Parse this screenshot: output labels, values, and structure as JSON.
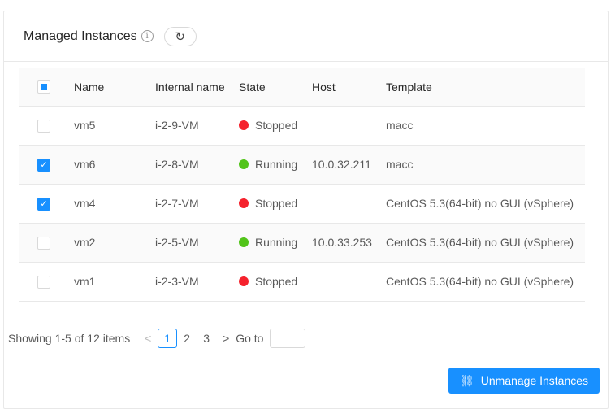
{
  "header": {
    "title": "Managed Instances",
    "info_icon": "info-circle-icon",
    "refresh_icon": "reload-icon"
  },
  "table": {
    "columns": [
      "Name",
      "Internal name",
      "State",
      "Host",
      "Template"
    ],
    "rows": [
      {
        "selected": false,
        "name": "vm5",
        "internal": "i-2-9-VM",
        "state": "Stopped",
        "host": "",
        "template": "macc"
      },
      {
        "selected": true,
        "name": "vm6",
        "internal": "i-2-8-VM",
        "state": "Running",
        "host": "10.0.32.211",
        "template": "macc"
      },
      {
        "selected": true,
        "name": "vm4",
        "internal": "i-2-7-VM",
        "state": "Stopped",
        "host": "",
        "template": "CentOS 5.3(64-bit) no GUI (vSphere)"
      },
      {
        "selected": false,
        "name": "vm2",
        "internal": "i-2-5-VM",
        "state": "Running",
        "host": "10.0.33.253",
        "template": "CentOS 5.3(64-bit) no GUI (vSphere)"
      },
      {
        "selected": false,
        "name": "vm1",
        "internal": "i-2-3-VM",
        "state": "Stopped",
        "host": "",
        "template": "CentOS 5.3(64-bit) no GUI (vSphere)"
      }
    ]
  },
  "colors": {
    "Stopped": "#f5222d",
    "Running": "#52c41a",
    "accent": "#1890ff"
  },
  "pagination": {
    "summary": "Showing 1-5 of 12 items",
    "pages": [
      "1",
      "2",
      "3"
    ],
    "current": "1",
    "prev": "<",
    "next": ">",
    "goto_label": "Go to",
    "goto_value": ""
  },
  "actions": {
    "unmanage_label": "Unmanage Instances",
    "unmanage_icon": "disconnect-icon"
  }
}
